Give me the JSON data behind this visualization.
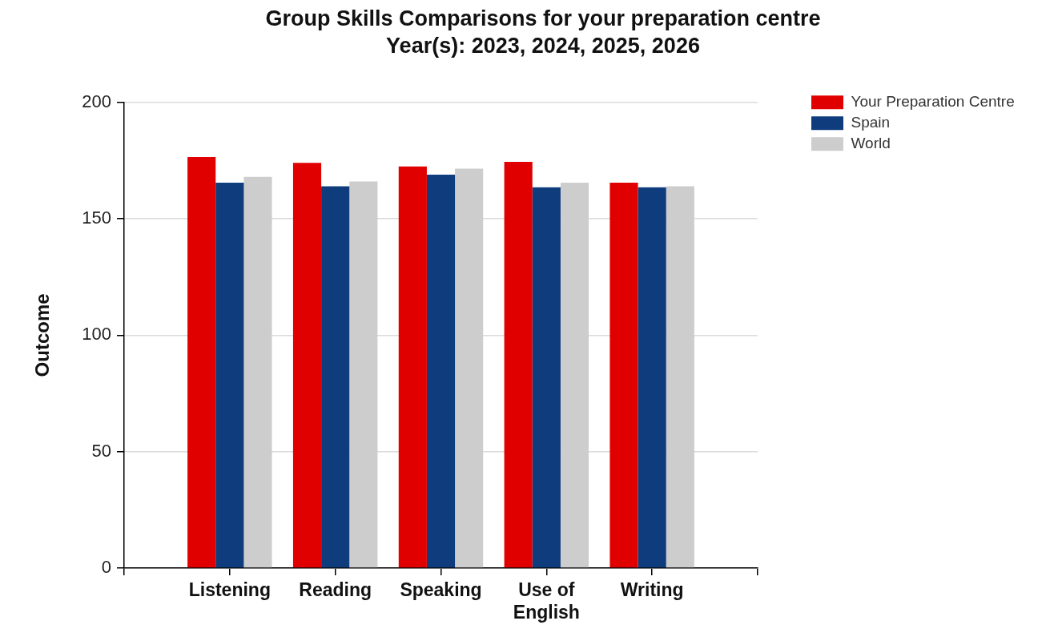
{
  "chart_data": {
    "type": "bar",
    "title": "Group Skills Comparisons for your preparation centre",
    "subtitle": "Year(s): 2023, 2024, 2025, 2026",
    "ylabel": "Outcome",
    "categories": [
      "Listening",
      "Reading",
      "Speaking",
      "Use of English",
      "Writing"
    ],
    "series": [
      {
        "name": "Your Preparation Centre",
        "color": "#e00000",
        "values": [
          176.5,
          174,
          172.5,
          174.5,
          165.5
        ]
      },
      {
        "name": "Spain",
        "color": "#0e3c7c",
        "values": [
          165.5,
          164,
          169,
          163.5,
          163.5
        ]
      },
      {
        "name": "World",
        "color": "#cdcdcd",
        "values": [
          168,
          166,
          171.5,
          165.5,
          164
        ]
      }
    ],
    "ylim": [
      0,
      200
    ],
    "yticks": [
      0,
      50,
      100,
      150,
      200
    ],
    "grid": "y",
    "legend": "top right"
  }
}
